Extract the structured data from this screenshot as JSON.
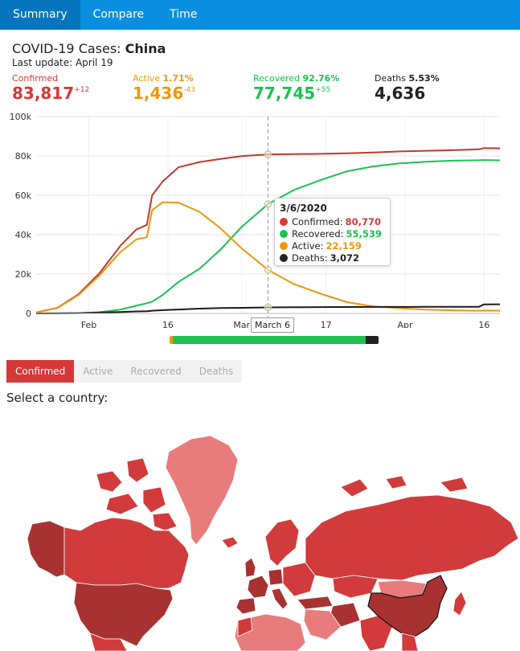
{
  "nav": {
    "tabs": [
      "Summary",
      "Compare",
      "Time"
    ],
    "active": 0
  },
  "header": {
    "title_prefix": "COVID-19 Cases: ",
    "country": "China",
    "last_update": "Last update: April 19"
  },
  "stats": {
    "confirmed": {
      "label": "Confirmed",
      "value": "83,817",
      "delta": "+12",
      "color": "#d63838"
    },
    "active": {
      "label": "Active",
      "pct": "1.71%",
      "value": "1,436",
      "delta": "-43",
      "color": "#f0960e"
    },
    "recovered": {
      "label": "Recovered",
      "pct": "92.76%",
      "value": "77,745",
      "delta": "+55",
      "color": "#1ec04f"
    },
    "deaths": {
      "label": "Deaths",
      "pct": "5.53%",
      "value": "4,636",
      "delta": "",
      "color": "#222222"
    }
  },
  "chart_data": {
    "type": "line",
    "yticks": [
      "0",
      "20k",
      "40k",
      "60k",
      "80k",
      "100k"
    ],
    "ylim": [
      0,
      100000
    ],
    "xlim": [
      "2020-01-22",
      "2020-04-19"
    ],
    "xticks": [
      {
        "date": "2020-02-01",
        "label": "Feb"
      },
      {
        "date": "2020-02-16",
        "label": "16"
      },
      {
        "date": "2020-03-01",
        "label": "Mar"
      },
      {
        "date": "2020-03-17",
        "label": "17"
      },
      {
        "date": "2020-04-01",
        "label": "Apr"
      },
      {
        "date": "2020-04-16",
        "label": "16"
      }
    ],
    "x": [
      "2020-01-22",
      "2020-01-26",
      "2020-01-30",
      "2020-02-03",
      "2020-02-07",
      "2020-02-10",
      "2020-02-12",
      "2020-02-13",
      "2020-02-15",
      "2020-02-18",
      "2020-02-22",
      "2020-02-26",
      "2020-03-01",
      "2020-03-06",
      "2020-03-11",
      "2020-03-16",
      "2020-03-21",
      "2020-03-26",
      "2020-03-31",
      "2020-04-05",
      "2020-04-10",
      "2020-04-15",
      "2020-04-16",
      "2020-04-19"
    ],
    "series": [
      {
        "name": "Confirmed",
        "color": "#c0392b",
        "values": [
          550,
          2800,
          9700,
          20400,
          34400,
          42600,
          45000,
          60000,
          67000,
          74200,
          76900,
          78500,
          79900,
          80770,
          80950,
          81050,
          81300,
          81700,
          82300,
          82600,
          82900,
          83350,
          84000,
          83817
        ]
      },
      {
        "name": "Recovered",
        "color": "#1ec04f",
        "values": [
          30,
          50,
          170,
          630,
          2000,
          3900,
          5200,
          6000,
          9400,
          16000,
          22700,
          32500,
          44000,
          55539,
          62800,
          67800,
          72200,
          74700,
          76200,
          77000,
          77600,
          77800,
          77900,
          77745
        ]
      },
      {
        "name": "Active",
        "color": "#f0960e",
        "values": [
          500,
          2700,
          9300,
          19300,
          31200,
          37600,
          38700,
          52500,
          56500,
          56300,
          51600,
          43200,
          33000,
          22159,
          14800,
          10000,
          5700,
          3600,
          2700,
          1900,
          1600,
          1400,
          1450,
          1436
        ]
      },
      {
        "name": "Deaths",
        "color": "#1a1a1a",
        "values": [
          20,
          60,
          170,
          430,
          720,
          1010,
          1110,
          1370,
          1670,
          2010,
          2440,
          2720,
          2870,
          3072,
          3160,
          3220,
          3260,
          3290,
          3310,
          3330,
          3340,
          3350,
          4630,
          4636
        ]
      }
    ]
  },
  "tooltip": {
    "date": "3/6/2020",
    "rows": [
      {
        "label": "Confirmed:",
        "value": "80,770",
        "color": "#d63838"
      },
      {
        "label": "Recovered:",
        "value": "55,539",
        "color": "#1ec04f"
      },
      {
        "label": "Active:",
        "value": "22,159",
        "color": "#f0960e"
      },
      {
        "label": "Deaths:",
        "value": "3,072",
        "color": "#222222"
      }
    ],
    "xcursor_label": "March 6"
  },
  "slider": {
    "segments": [
      {
        "color": "#f0960e",
        "fraction": 0.015
      },
      {
        "color": "#1ec04f",
        "fraction": 0.925
      },
      {
        "color": "#222222",
        "fraction": 0.06
      }
    ]
  },
  "category_tabs": {
    "tabs": [
      "Confirmed",
      "Active",
      "Recovered",
      "Deaths"
    ],
    "active": 0
  },
  "select_country_label": "Select a country:",
  "map": {
    "highlighted_country": "China"
  }
}
